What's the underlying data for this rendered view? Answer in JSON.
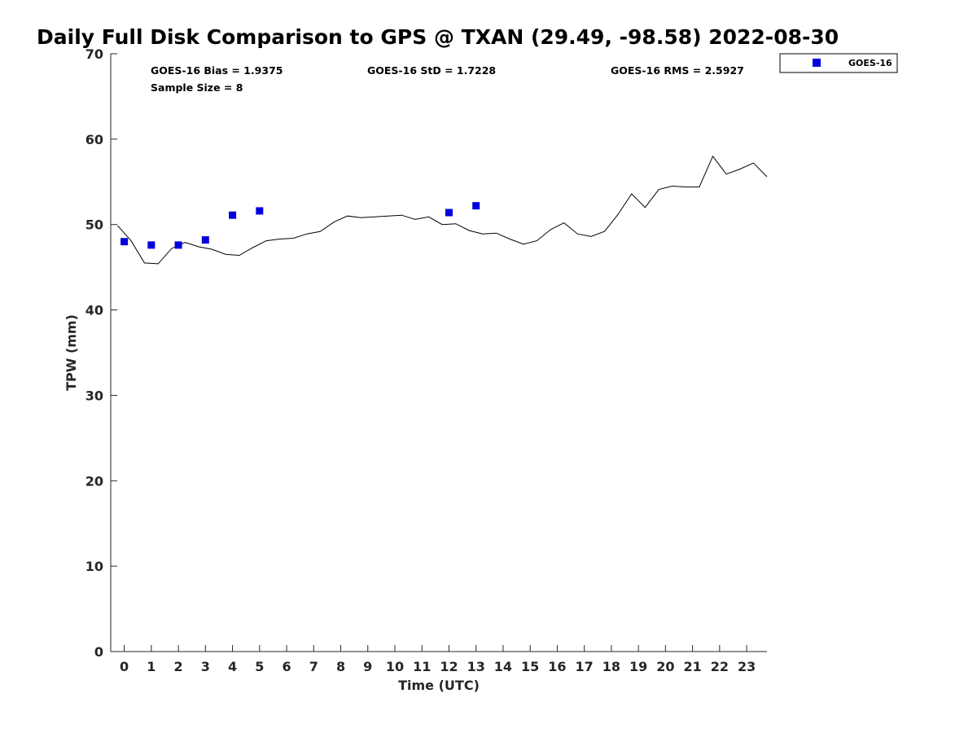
{
  "chart_data": {
    "type": "scatter",
    "title": "Daily Full Disk Comparison to GPS @ TXAN (29.49, -98.58) 2022-08-30",
    "xlabel": "Time (UTC)",
    "ylabel": "TPW (mm)",
    "xlim": [
      -0.5,
      23.75
    ],
    "ylim": [
      0,
      70
    ],
    "x_ticks": [
      0,
      1,
      2,
      3,
      4,
      5,
      6,
      7,
      8,
      9,
      10,
      11,
      12,
      13,
      14,
      15,
      16,
      17,
      18,
      19,
      20,
      21,
      22,
      23
    ],
    "y_ticks": [
      0,
      10,
      20,
      30,
      40,
      50,
      60,
      70
    ],
    "grid": false,
    "legend_position": "top-right, outside plot",
    "stats": {
      "bias": "GOES-16 Bias = 1.9375",
      "std": "GOES-16 StD = 1.7228",
      "rms": "GOES-16 RMS = 2.5927",
      "sample": "Sample Size = 8"
    },
    "series": [
      {
        "name": "GOES-16",
        "kind": "markers",
        "marker": "square",
        "color": "#0000dd",
        "x": [
          0,
          1,
          2,
          3,
          4,
          5,
          12,
          13
        ],
        "y": [
          48.0,
          47.6,
          47.6,
          48.2,
          51.1,
          51.6,
          51.4,
          52.2
        ]
      },
      {
        "kind": "line",
        "color": "#000000",
        "x": [
          -0.25,
          0.25,
          0.75,
          1.25,
          1.75,
          2.25,
          2.75,
          3.25,
          3.75,
          4.25,
          4.75,
          5.25,
          5.75,
          6.25,
          6.75,
          7.25,
          7.75,
          8.25,
          8.75,
          9.25,
          9.75,
          10.25,
          10.75,
          11.25,
          11.75,
          12.25,
          12.75,
          13.25,
          13.75,
          14.25,
          14.75,
          15.25,
          15.75,
          16.25,
          16.75,
          17.25,
          17.75,
          18.25,
          18.75,
          19.25,
          19.75,
          20.25,
          20.75,
          21.25,
          21.75,
          22.25,
          22.75,
          23.25,
          23.75
        ],
        "y": [
          49.9,
          48.1,
          45.5,
          45.4,
          47.2,
          47.9,
          47.4,
          47.1,
          46.5,
          46.4,
          47.3,
          48.1,
          48.3,
          48.4,
          48.9,
          49.2,
          50.3,
          51.0,
          50.8,
          50.9,
          51.0,
          51.1,
          50.6,
          50.9,
          50.0,
          50.1,
          49.3,
          48.9,
          49.0,
          48.3,
          47.7,
          48.1,
          49.4,
          50.2,
          48.9,
          48.6,
          49.2,
          51.2,
          53.6,
          52.0,
          54.1,
          54.5,
          54.4,
          54.4,
          58.0,
          55.9,
          56.5,
          57.2,
          55.6
        ]
      }
    ]
  }
}
